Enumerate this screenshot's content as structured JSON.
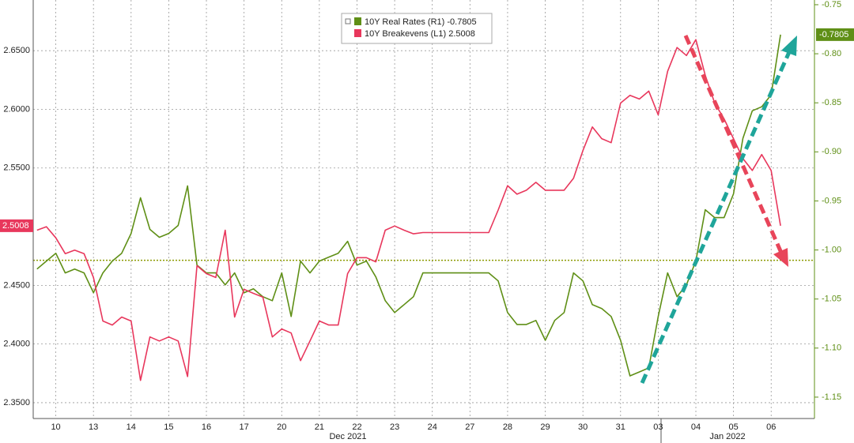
{
  "chart_data": {
    "type": "line",
    "x": [
      -0.5,
      -0.25,
      0,
      0.25,
      0.5,
      0.75,
      1,
      1.25,
      1.5,
      1.75,
      2,
      2.25,
      2.5,
      2.75,
      3,
      3.25,
      3.5,
      3.75,
      4,
      4.25,
      4.5,
      4.75,
      5,
      5.25,
      5.5,
      5.75,
      6,
      6.25,
      6.5,
      6.75,
      7,
      7.25,
      7.5,
      7.75,
      8,
      8.25,
      8.5,
      8.75,
      9,
      9.25,
      9.5,
      9.75,
      10,
      10.25,
      10.5,
      10.75,
      11,
      11.25,
      11.5,
      11.75,
      12,
      12.25,
      12.5,
      12.75,
      13,
      13.25,
      13.5,
      13.75,
      14,
      14.25,
      14.5,
      14.75,
      15,
      15.25,
      15.5,
      15.75,
      16,
      16.25,
      16.5,
      16.75,
      17,
      17.25,
      17.5,
      17.75,
      18,
      18.25,
      18.5,
      18.75,
      19,
      19.25
    ],
    "series": [
      {
        "name": "10Y Real Rates (R1)",
        "last_value": -0.7805,
        "color": "#5f8f16",
        "axis": "y2",
        "values": [
          -1.0194,
          -1.0113,
          -1.0033,
          -1.0234,
          -1.0194,
          -1.0234,
          -1.0436,
          -1.0234,
          -1.0113,
          -1.0033,
          -0.9831,
          -0.9468,
          -0.979,
          -0.9871,
          -0.9831,
          -0.975,
          -0.9347,
          -1.0154,
          -1.0234,
          -1.0234,
          -1.0355,
          -1.0234,
          -1.0436,
          -1.0396,
          -1.0476,
          -1.0517,
          -1.0234,
          -1.0678,
          -1.0113,
          -1.0234,
          -1.0113,
          -1.0073,
          -1.0033,
          -0.9912,
          -1.0154,
          -1.0113,
          -1.0275,
          -1.0517,
          -1.0638,
          -1.0557,
          -1.0476,
          -1.0234,
          -1.0234,
          -1.0234,
          -1.0234,
          -1.0234,
          -1.0234,
          -1.0234,
          -1.0234,
          -1.0315,
          -1.0638,
          -1.0759,
          -1.0759,
          -1.0718,
          -1.092,
          -1.0718,
          -1.0638,
          -1.0234,
          -1.0315,
          -1.0557,
          -1.0597,
          -1.0678,
          -1.092,
          -1.1283,
          -1.1243,
          -1.1202,
          -1.0678,
          -1.0234,
          -1.0476,
          -1.0355,
          -1.0113,
          -0.959,
          -0.967,
          -0.967,
          -0.9428,
          -0.8863,
          -0.8581,
          -0.854,
          -0.8419,
          -0.7805
        ]
      },
      {
        "name": "10Y Breakevens (L1)",
        "last_value": 2.5008,
        "color": "#e8375c",
        "axis": "y",
        "values": [
          2.497,
          2.5,
          2.4905,
          2.477,
          2.48,
          2.477,
          2.4567,
          2.4196,
          2.4162,
          2.423,
          2.4196,
          2.369,
          2.406,
          2.4026,
          2.406,
          2.4026,
          2.3723,
          2.4668,
          2.46,
          2.4567,
          2.497,
          2.423,
          2.4466,
          2.4432,
          2.44,
          2.406,
          2.4128,
          2.4094,
          2.3858,
          2.4026,
          2.4196,
          2.4162,
          2.4162,
          2.46,
          2.4736,
          2.4736,
          2.47,
          2.497,
          2.5006,
          2.497,
          2.4939,
          2.495,
          2.495,
          2.495,
          2.495,
          2.495,
          2.495,
          2.495,
          2.495,
          2.5142,
          2.535,
          2.5277,
          2.5311,
          2.5378,
          2.5311,
          2.5311,
          2.5311,
          2.5412,
          2.5649,
          2.585,
          2.575,
          2.5716,
          2.6054,
          2.612,
          2.6088,
          2.6155,
          2.5953,
          2.6324,
          2.6527,
          2.6459,
          2.6594,
          2.629,
          2.6054,
          2.5919,
          2.575,
          2.5581,
          2.5479,
          2.5615,
          2.5479,
          2.5008
        ]
      }
    ],
    "xlim": [
      -0.6,
      20.15
    ],
    "xticks": [
      {
        "value": 0,
        "label": "10"
      },
      {
        "value": 1,
        "label": "13"
      },
      {
        "value": 2,
        "label": "14"
      },
      {
        "value": 3,
        "label": "15"
      },
      {
        "value": 4,
        "label": "16"
      },
      {
        "value": 5,
        "label": "17"
      },
      {
        "value": 6,
        "label": "20"
      },
      {
        "value": 7,
        "label": "21"
      },
      {
        "value": 8,
        "label": "22"
      },
      {
        "value": 9,
        "label": "23"
      },
      {
        "value": 10,
        "label": "24"
      },
      {
        "value": 11,
        "label": "27"
      },
      {
        "value": 12,
        "label": "28"
      },
      {
        "value": 13,
        "label": "29"
      },
      {
        "value": 14,
        "label": "30"
      },
      {
        "value": 15,
        "label": "31"
      },
      {
        "value": 16,
        "label": "03"
      },
      {
        "value": 17,
        "label": "04"
      },
      {
        "value": 18,
        "label": "05"
      },
      {
        "value": 19,
        "label": "06"
      }
    ],
    "months": [
      "Dec 2021",
      "Jan 2022"
    ],
    "ylim": [
      2.3365,
      2.6932
    ],
    "yticks": [
      {
        "value": 2.35,
        "label": "2.3500"
      },
      {
        "value": 2.4,
        "label": "2.4000"
      },
      {
        "value": 2.45,
        "label": "2.4500"
      },
      {
        "value": 2.55,
        "label": "2.5500"
      },
      {
        "value": 2.6,
        "label": "2.6000"
      },
      {
        "value": 2.65,
        "label": "2.6500"
      }
    ],
    "y2lim": [
      -1.1718,
      -0.7452
    ],
    "y2ticks": [
      -0.75,
      {
        "value": -0.8,
        "label": "-0.80"
      },
      -0.85,
      {
        "value": -0.9,
        "label": "-0.90"
      },
      -0.95,
      {
        "value": -1,
        "label": "-1.00"
      },
      -1.05,
      {
        "value": -1.1,
        "label": "-1.10"
      },
      -1.15
    ],
    "reference_line": {
      "value": -1.0105,
      "axis": "y2",
      "color": "#8c9a00"
    },
    "grid": true
  }
}
